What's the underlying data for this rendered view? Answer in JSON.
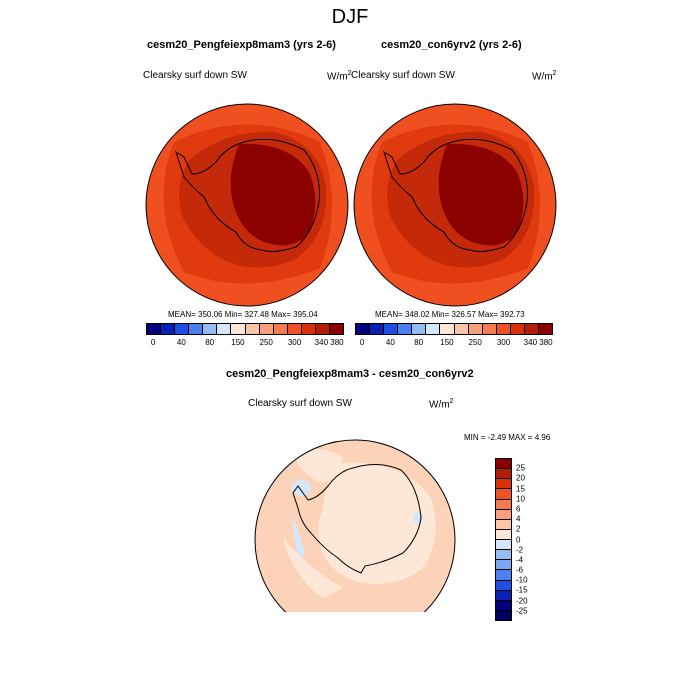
{
  "title": "DJF",
  "panels": [
    {
      "title": "cesm20_Pengfeiexp8mam3 (yrs 2-6)",
      "variable": "Clearsky surf down SW",
      "units_base": "W/m",
      "units_exp": "2",
      "stats": "MEAN= 350.06  Min= 327.48  Max= 395.04"
    },
    {
      "title": "cesm20_con6yrv2 (yrs 2-6)",
      "variable": "Clearsky surf down SW",
      "units_base": "W/m",
      "units_exp": "2",
      "stats": "MEAN= 348.02  Min= 326.57  Max= 392.73"
    }
  ],
  "abs_colorbar": {
    "ticks": [
      "0",
      "40",
      "80",
      "150",
      "250",
      "300",
      "340",
      "380"
    ],
    "colors": [
      "#00007a",
      "#0a1fb3",
      "#1f4fe0",
      "#4a80f0",
      "#95bdf5",
      "#d6e6fb",
      "#fde8d8",
      "#fbc5a8",
      "#f89f7b",
      "#f47a50",
      "#ee5228",
      "#d9300a",
      "#b21d05",
      "#8b0000"
    ]
  },
  "diff": {
    "title": "cesm20_Pengfeiexp8mam3 - cesm20_con6yrv2",
    "variable": "Clearsky surf down SW",
    "units_base": "W/m",
    "units_exp": "2",
    "stats": "MIN =  -2.49 MAX =   4.96"
  },
  "diff_colorbar": {
    "ticks": [
      "25",
      "20",
      "15",
      "10",
      "6",
      "4",
      "2",
      "0",
      "-2",
      "-4",
      "-6",
      "-10",
      "-15",
      "-20",
      "-25"
    ],
    "colors": [
      "#8b0000",
      "#b21d05",
      "#d9300a",
      "#ee5228",
      "#f47a50",
      "#f89f7b",
      "#fbc5a8",
      "#fde8d8",
      "#d6e6fb",
      "#95bdf5",
      "#7aa6f2",
      "#4a80f0",
      "#1f4fe0",
      "#0a1fb3",
      "#00007a",
      "#000060"
    ]
  },
  "colors": {
    "outer_ring": "#f0501f",
    "mid_ring": "#e03a0e",
    "coast_band": "#b8240a",
    "interior": "#8b0000",
    "diff_background": "#fcd2b8",
    "diff_light": "#fde8d8",
    "diff_blue": "#d6e6fb"
  }
}
